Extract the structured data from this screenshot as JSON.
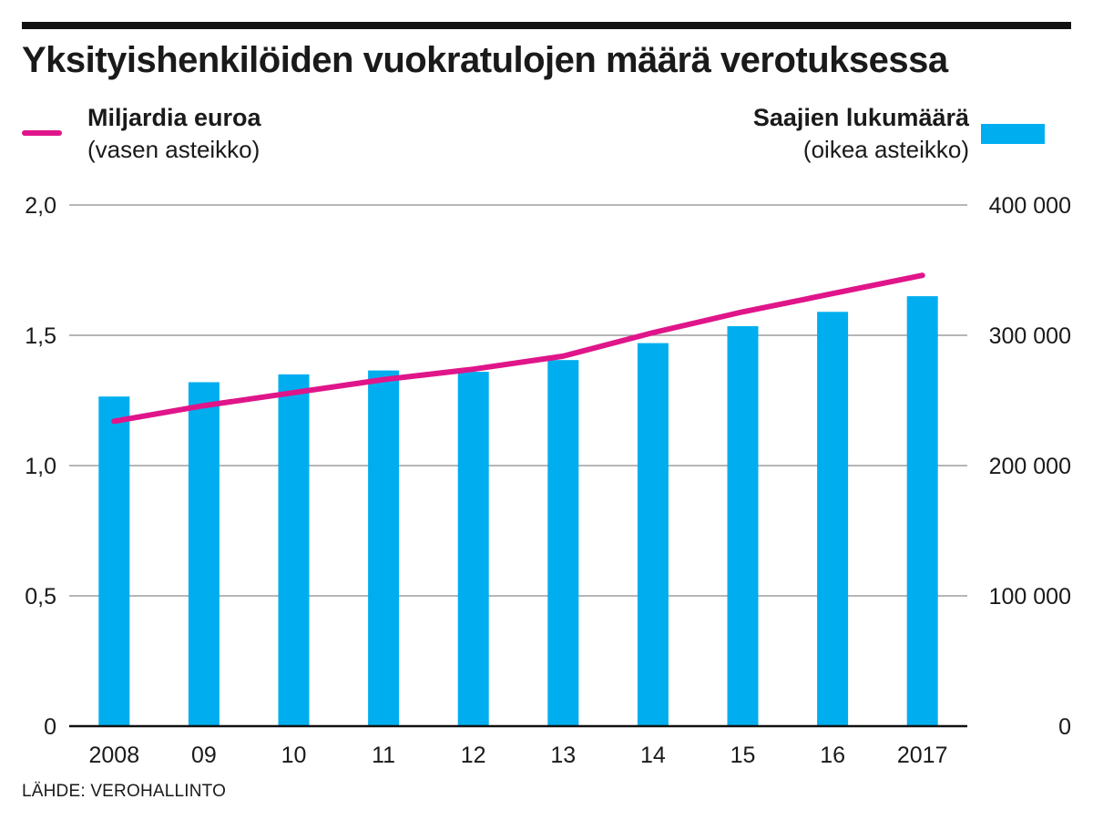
{
  "title": "Yksityishenkilöiden vuokratulojen määrä verotuksessa",
  "legend": {
    "left": {
      "name": "Miljardia euroa",
      "note": "(vasen asteikko)"
    },
    "right": {
      "name": "Saajien lukumäärä",
      "note": "(oikea asteikko)"
    }
  },
  "source": "LÄHDE: VEROHALLINTO",
  "colors": {
    "line": "#e0158a",
    "bars": "#00aeef",
    "grid": "#8a8a8a",
    "axis": "#111111"
  },
  "chart_data": {
    "type": "bar+line",
    "categories": [
      "2008",
      "09",
      "10",
      "11",
      "12",
      "13",
      "14",
      "15",
      "16",
      "2017"
    ],
    "series": [
      {
        "name": "Saajien lukumäärä",
        "type": "bar",
        "axis": "right",
        "values": [
          253000,
          264000,
          270000,
          273000,
          272000,
          281000,
          294000,
          307000,
          318000,
          330000
        ]
      },
      {
        "name": "Miljardia euroa",
        "type": "line",
        "axis": "left",
        "values": [
          1.17,
          1.23,
          1.28,
          1.33,
          1.37,
          1.42,
          1.51,
          1.59,
          1.66,
          1.73
        ]
      }
    ],
    "y_left": {
      "ylim": [
        0,
        2.0
      ],
      "ticks": [
        0,
        0.5,
        1.0,
        1.5,
        2.0
      ],
      "tick_labels": [
        "0",
        "0,5",
        "1,0",
        "1,5",
        "2,0"
      ]
    },
    "y_right": {
      "ylim": [
        0,
        400000
      ],
      "ticks": [
        0,
        100000,
        200000,
        300000,
        400000
      ],
      "tick_labels": [
        "0",
        "100 000",
        "200 000",
        "300 000",
        "400 000"
      ]
    },
    "grid": true
  }
}
